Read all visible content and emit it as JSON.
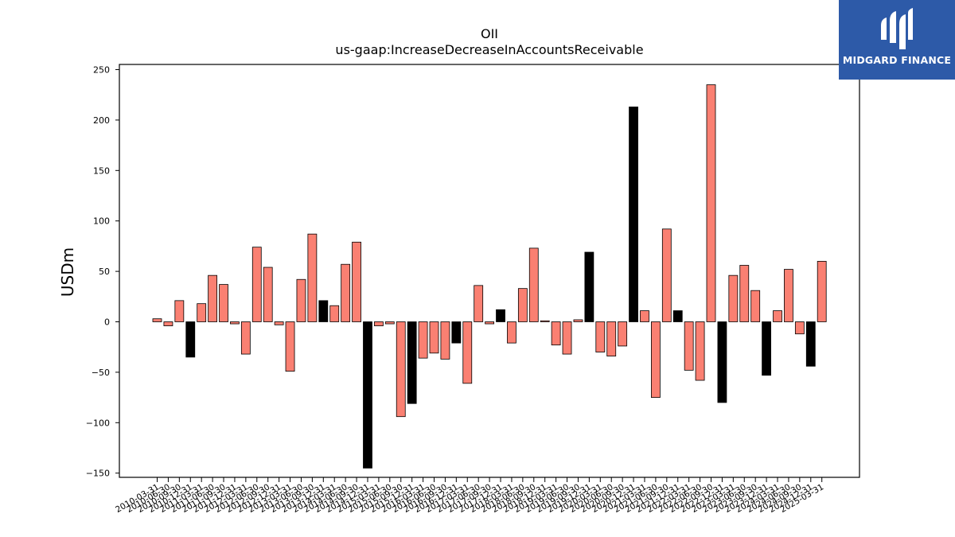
{
  "chart_data": {
    "type": "bar",
    "title": "OII",
    "subtitle": "us-gaap:IncreaseDecreaseInAccountsReceivable",
    "xlabel": "",
    "ylabel": "USDm",
    "ylim": [
      -155,
      255
    ],
    "yticks": [
      -150,
      -100,
      -50,
      0,
      50,
      100,
      150,
      200,
      250
    ],
    "grid": false,
    "colors": {
      "default": "#fa8072",
      "highlight": "#000000"
    },
    "categories": [
      "2010-03-31",
      "2010-06-30",
      "2010-09-30",
      "2010-12-31",
      "2011-03-31",
      "2011-06-30",
      "2011-09-30",
      "2011-12-31",
      "2012-03-31",
      "2012-06-30",
      "2012-09-30",
      "2012-12-31",
      "2013-03-31",
      "2013-06-30",
      "2013-09-30",
      "2013-12-31",
      "2014-03-31",
      "2014-06-30",
      "2014-09-30",
      "2014-12-31",
      "2015-03-31",
      "2015-06-30",
      "2015-09-30",
      "2015-12-31",
      "2016-03-31",
      "2016-06-30",
      "2016-09-30",
      "2016-12-31",
      "2017-03-31",
      "2017-06-30",
      "2017-09-30",
      "2017-12-31",
      "2018-03-31",
      "2018-06-30",
      "2018-09-30",
      "2018-12-31",
      "2019-03-31",
      "2019-06-30",
      "2019-09-30",
      "2019-12-31",
      "2020-03-31",
      "2020-06-30",
      "2020-09-30",
      "2020-12-31",
      "2021-03-31",
      "2021-06-30",
      "2021-09-30",
      "2021-12-31",
      "2022-03-31",
      "2022-06-30",
      "2022-09-30",
      "2022-12-31",
      "2023-03-31",
      "2023-06-30",
      "2023-09-30",
      "2023-12-31",
      "2024-03-31",
      "2024-06-30",
      "2024-09-30",
      "2024-12-31",
      "2025-03-31"
    ],
    "values": [
      3,
      -4,
      21,
      -35,
      18,
      46,
      37,
      -2,
      -32,
      74,
      54,
      -3,
      -49,
      42,
      87,
      21,
      16,
      57,
      79,
      -145,
      -4,
      -2,
      -94,
      -81,
      -36,
      -31,
      -37,
      -21,
      -61,
      36,
      -2,
      12,
      -21,
      33,
      73,
      1,
      -23,
      -32,
      2,
      69,
      -30,
      -34,
      -24,
      213,
      11,
      -75,
      92,
      11,
      -48,
      -58,
      235,
      -80,
      46,
      56,
      31,
      -53,
      11,
      52,
      -12,
      -44,
      60
    ],
    "highlight": [
      3,
      15,
      19,
      23,
      27,
      31,
      39,
      43,
      47,
      51,
      55,
      59
    ]
  },
  "logo": {
    "text": "MIDGARD FINANCE"
  }
}
